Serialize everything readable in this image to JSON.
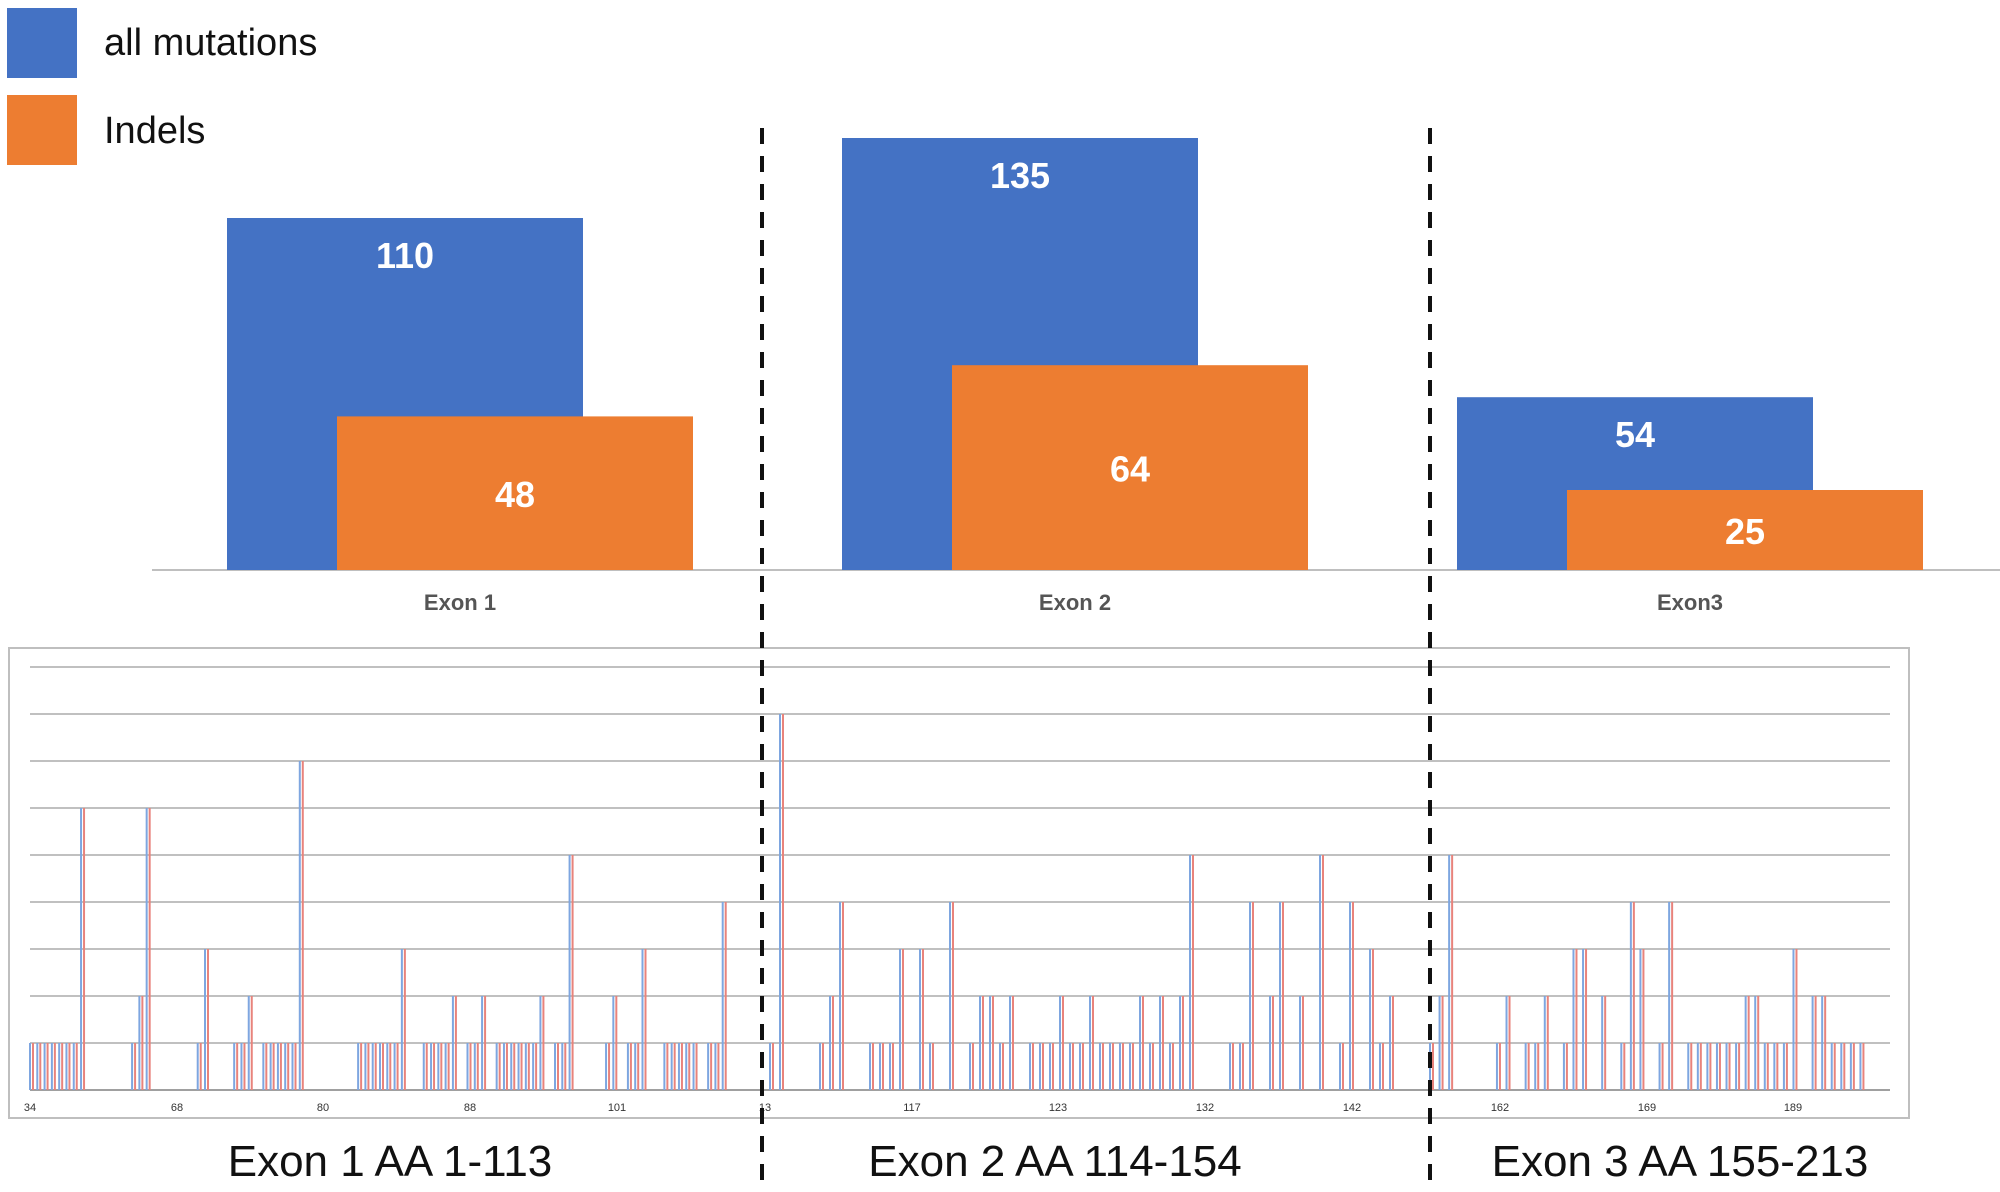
{
  "colors": {
    "all_mutations": "#4472C4",
    "indels": "#ED7D31",
    "lollipop_a": "#7EA6E0",
    "lollipop_b": "#E8837C",
    "grid": "#808080",
    "axis": "#BFBFBF",
    "divider": "#111111"
  },
  "legend": [
    {
      "label": "all mutations",
      "color": "#4472C4"
    },
    {
      "label": "Indels",
      "color": "#ED7D31"
    }
  ],
  "chart_data": [
    {
      "type": "bar",
      "categories": [
        "Exon 1",
        "Exon 2",
        "Exon3"
      ],
      "series": [
        {
          "name": "all mutations",
          "values": [
            110,
            135,
            54
          ]
        },
        {
          "name": "Indels",
          "values": [
            48,
            64,
            25
          ]
        }
      ],
      "ylim": [
        0,
        135
      ],
      "grid": false,
      "legend_position": "top-left",
      "data_labels": true
    },
    {
      "type": "bar",
      "subtype": "lollipop",
      "grid": true,
      "ylim": [
        0,
        9
      ],
      "tick_labels": [
        "34",
        "68",
        "80",
        "88",
        "101",
        "13",
        "117",
        "123",
        "132",
        "142",
        "162",
        "169",
        "189"
      ],
      "exon_captions": [
        "Exon 1 AA 1-113",
        "Exon 2 AA 114-154",
        "Exon 3 AA 155-213"
      ],
      "positions": {
        "exon1": [
          {
            "x": 0,
            "v": 1
          },
          {
            "x": 1,
            "v": 1
          },
          {
            "x": 2,
            "v": 1
          },
          {
            "x": 3,
            "v": 1
          },
          {
            "x": 4,
            "v": 1
          },
          {
            "x": 5,
            "v": 1
          },
          {
            "x": 6,
            "v": 1
          },
          {
            "x": 7,
            "v": 6
          },
          {
            "x": 14,
            "v": 1
          },
          {
            "x": 15,
            "v": 2
          },
          {
            "x": 16,
            "v": 6
          },
          {
            "x": 23,
            "v": 1
          },
          {
            "x": 24,
            "v": 3
          },
          {
            "x": 28,
            "v": 1
          },
          {
            "x": 29,
            "v": 1
          },
          {
            "x": 30,
            "v": 2
          },
          {
            "x": 32,
            "v": 1
          },
          {
            "x": 33,
            "v": 1
          },
          {
            "x": 34,
            "v": 1
          },
          {
            "x": 35,
            "v": 1
          },
          {
            "x": 36,
            "v": 1
          },
          {
            "x": 37,
            "v": 7
          },
          {
            "x": 45,
            "v": 1
          },
          {
            "x": 46,
            "v": 1
          },
          {
            "x": 47,
            "v": 1
          },
          {
            "x": 48,
            "v": 1
          },
          {
            "x": 49,
            "v": 1
          },
          {
            "x": 50,
            "v": 1
          },
          {
            "x": 51,
            "v": 3
          },
          {
            "x": 54,
            "v": 1
          },
          {
            "x": 55,
            "v": 1
          },
          {
            "x": 56,
            "v": 1
          },
          {
            "x": 57,
            "v": 1
          },
          {
            "x": 58,
            "v": 2
          },
          {
            "x": 60,
            "v": 1
          },
          {
            "x": 61,
            "v": 1
          },
          {
            "x": 62,
            "v": 2
          },
          {
            "x": 64,
            "v": 1
          },
          {
            "x": 65,
            "v": 1
          },
          {
            "x": 66,
            "v": 1
          },
          {
            "x": 67,
            "v": 1
          },
          {
            "x": 68,
            "v": 1
          },
          {
            "x": 69,
            "v": 1
          },
          {
            "x": 70,
            "v": 2
          },
          {
            "x": 72,
            "v": 1
          },
          {
            "x": 73,
            "v": 1
          },
          {
            "x": 74,
            "v": 5
          },
          {
            "x": 79,
            "v": 1
          },
          {
            "x": 80,
            "v": 2
          },
          {
            "x": 82,
            "v": 1
          },
          {
            "x": 83,
            "v": 1
          },
          {
            "x": 84,
            "v": 3
          },
          {
            "x": 87,
            "v": 1
          },
          {
            "x": 88,
            "v": 1
          },
          {
            "x": 89,
            "v": 1
          },
          {
            "x": 90,
            "v": 1
          },
          {
            "x": 91,
            "v": 1
          },
          {
            "x": 93,
            "v": 1
          },
          {
            "x": 94,
            "v": 1
          },
          {
            "x": 95,
            "v": 4
          }
        ],
        "exon2": [
          {
            "x": 0,
            "v": 1
          },
          {
            "x": 1,
            "v": 8
          },
          {
            "x": 5,
            "v": 1
          },
          {
            "x": 6,
            "v": 2
          },
          {
            "x": 7,
            "v": 4
          },
          {
            "x": 10,
            "v": 1
          },
          {
            "x": 11,
            "v": 1
          },
          {
            "x": 12,
            "v": 1
          },
          {
            "x": 13,
            "v": 3
          },
          {
            "x": 15,
            "v": 3
          },
          {
            "x": 16,
            "v": 1
          },
          {
            "x": 18,
            "v": 4
          },
          {
            "x": 20,
            "v": 1
          },
          {
            "x": 21,
            "v": 2
          },
          {
            "x": 22,
            "v": 2
          },
          {
            "x": 23,
            "v": 1
          },
          {
            "x": 24,
            "v": 2
          },
          {
            "x": 26,
            "v": 1
          },
          {
            "x": 27,
            "v": 1
          },
          {
            "x": 28,
            "v": 1
          },
          {
            "x": 29,
            "v": 2
          },
          {
            "x": 30,
            "v": 1
          },
          {
            "x": 31,
            "v": 1
          },
          {
            "x": 32,
            "v": 2
          },
          {
            "x": 33,
            "v": 1
          },
          {
            "x": 34,
            "v": 1
          },
          {
            "x": 35,
            "v": 1
          },
          {
            "x": 36,
            "v": 1
          },
          {
            "x": 37,
            "v": 2
          },
          {
            "x": 38,
            "v": 1
          },
          {
            "x": 39,
            "v": 2
          },
          {
            "x": 40,
            "v": 1
          },
          {
            "x": 41,
            "v": 2
          },
          {
            "x": 42,
            "v": 5
          },
          {
            "x": 46,
            "v": 1
          },
          {
            "x": 47,
            "v": 1
          },
          {
            "x": 48,
            "v": 4
          },
          {
            "x": 50,
            "v": 2
          },
          {
            "x": 51,
            "v": 4
          },
          {
            "x": 53,
            "v": 2
          },
          {
            "x": 55,
            "v": 5
          },
          {
            "x": 57,
            "v": 1
          },
          {
            "x": 58,
            "v": 4
          },
          {
            "x": 60,
            "v": 3
          },
          {
            "x": 61,
            "v": 1
          },
          {
            "x": 62,
            "v": 2
          }
        ],
        "exon3": [
          {
            "x": 0,
            "v": 1
          },
          {
            "x": 1,
            "v": 2
          },
          {
            "x": 2,
            "v": 5
          },
          {
            "x": 7,
            "v": 1
          },
          {
            "x": 8,
            "v": 2
          },
          {
            "x": 10,
            "v": 1
          },
          {
            "x": 11,
            "v": 1
          },
          {
            "x": 12,
            "v": 2
          },
          {
            "x": 14,
            "v": 1
          },
          {
            "x": 15,
            "v": 3
          },
          {
            "x": 16,
            "v": 3
          },
          {
            "x": 18,
            "v": 2
          },
          {
            "x": 20,
            "v": 1
          },
          {
            "x": 21,
            "v": 4
          },
          {
            "x": 22,
            "v": 3
          },
          {
            "x": 24,
            "v": 1
          },
          {
            "x": 25,
            "v": 4
          },
          {
            "x": 27,
            "v": 1
          },
          {
            "x": 28,
            "v": 1
          },
          {
            "x": 29,
            "v": 1
          },
          {
            "x": 30,
            "v": 1
          },
          {
            "x": 31,
            "v": 1
          },
          {
            "x": 32,
            "v": 1
          },
          {
            "x": 33,
            "v": 2
          },
          {
            "x": 34,
            "v": 2
          },
          {
            "x": 35,
            "v": 1
          },
          {
            "x": 36,
            "v": 1
          },
          {
            "x": 37,
            "v": 1
          },
          {
            "x": 38,
            "v": 3
          },
          {
            "x": 40,
            "v": 2
          },
          {
            "x": 41,
            "v": 2
          },
          {
            "x": 42,
            "v": 1
          },
          {
            "x": 43,
            "v": 1
          },
          {
            "x": 44,
            "v": 1
          },
          {
            "x": 45,
            "v": 1
          }
        ]
      }
    }
  ]
}
